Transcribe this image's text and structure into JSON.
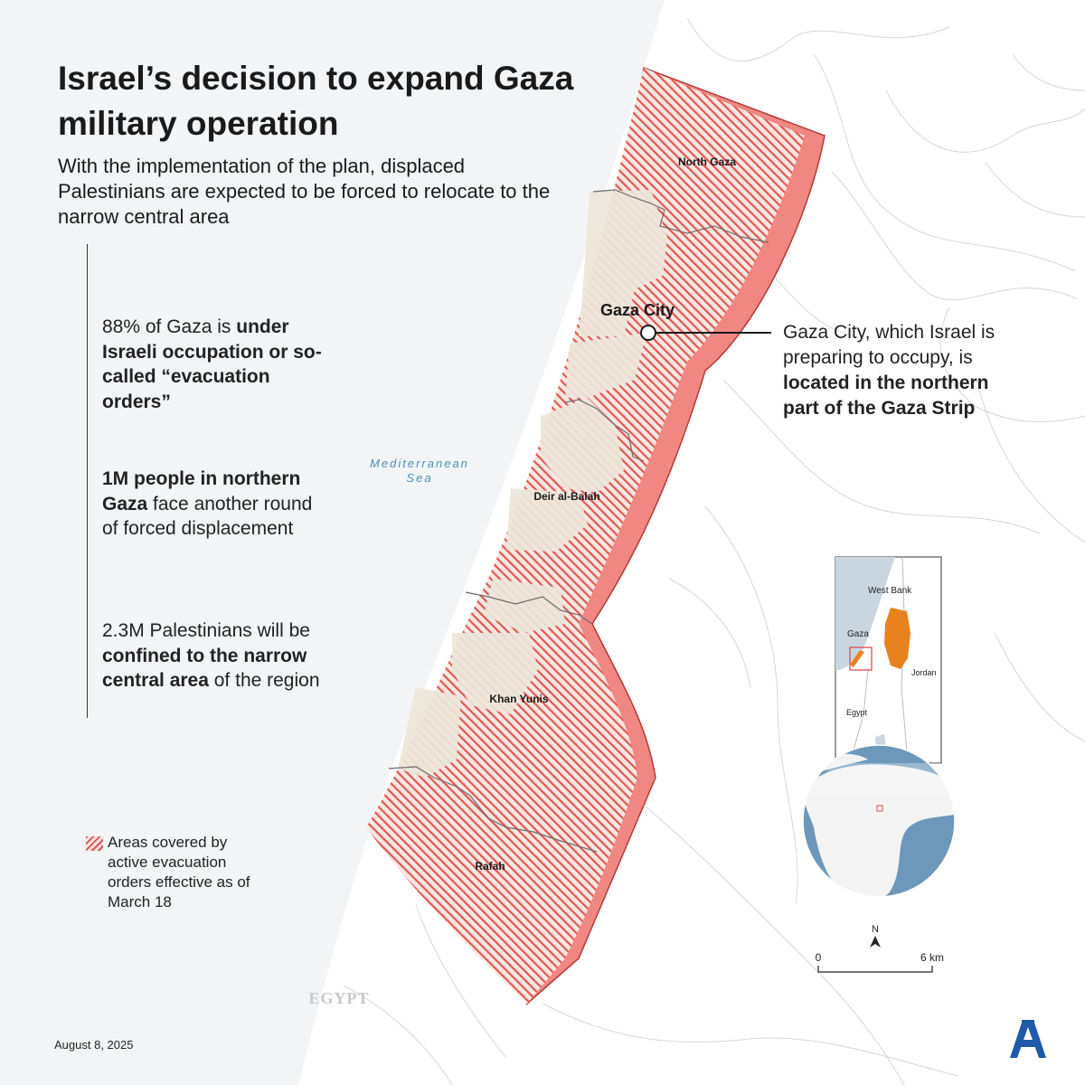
{
  "title": "Israel’s decision to expand Gaza military operation",
  "subtitle": "With the implementation of the plan, displaced Palestinians are expected to be forced to relocate to the narrow central area",
  "stats": [
    {
      "pre": "88% of Gaza is ",
      "bold": "under Israeli occupation or so-called “evacuation orders”",
      "post": ""
    },
    {
      "pre": "",
      "bold": "1M people in northern Gaza",
      "post": " face another round of forced displacement"
    },
    {
      "pre": "2.3M Palestinians will be ",
      "bold": "confined to the narrow central area",
      "post": " of the region"
    }
  ],
  "legend": {
    "text": "Areas covered by active evacuation orders effective as of March 18"
  },
  "callout": {
    "pre": "Gaza City, which Israel is preparing to occupy, is ",
    "bold": "located in the northern part of the Gaza Strip"
  },
  "map_labels": {
    "north_gaza": "North Gaza",
    "gaza_city": "Gaza City",
    "deir_al_balah": "Deir al-Balah",
    "khan_yunis": "Khan Yunis",
    "rafah": "Rafah",
    "sea_line1": "Mediterranean",
    "sea_line2": "Sea",
    "egypt": "EGYPT"
  },
  "inset": {
    "west_bank": "West Bank",
    "gaza": "Gaza",
    "jordan": "Jordan",
    "egypt": "Egypt"
  },
  "compass": {
    "label": "N"
  },
  "scale": {
    "start": "0",
    "end": "6 km"
  },
  "date": "August 8, 2025",
  "colors": {
    "evacuation": "#d9534f",
    "border": "#f08080",
    "highlight": "#e8821e",
    "sea": "#f3f4f6",
    "land": "#ffffff"
  },
  "logo": {
    "icon": "anadolu-agency-logo-icon",
    "color": "#1e5aa8"
  }
}
